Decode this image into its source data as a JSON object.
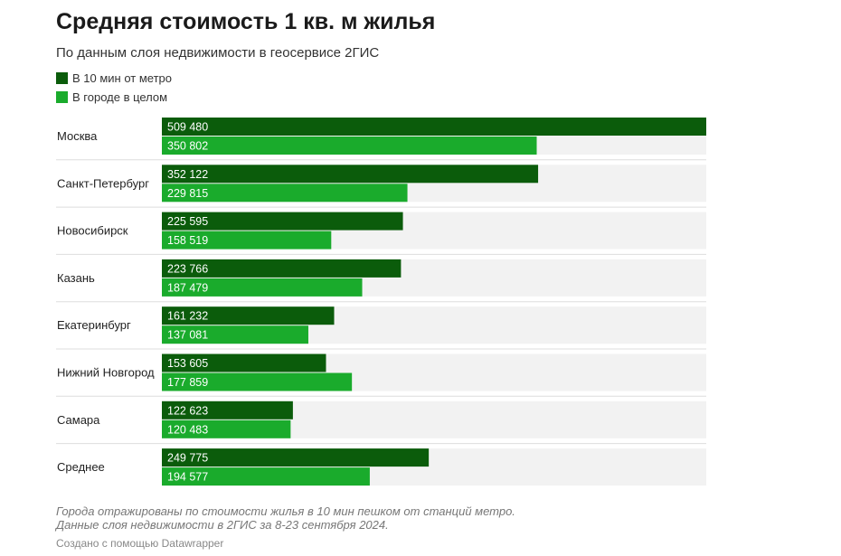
{
  "chart_data": {
    "type": "bar",
    "orientation": "horizontal",
    "title": "Средняя стоимость 1 кв. м жилья",
    "subtitle": "По данным слоя недвижимости в геосервисе 2ГИС",
    "categories": [
      "Москва",
      "Санкт-Петербург",
      "Новосибирск",
      "Казань",
      "Екатеринбург",
      "Нижний Новгород",
      "Самара",
      "Среднее"
    ],
    "series": [
      {
        "name": "В 10 мин от метро",
        "color": "#0b5c0b",
        "values": [
          509480,
          352122,
          225595,
          223766,
          161232,
          153605,
          122623,
          249775
        ],
        "labels": [
          "509 480",
          "352 122",
          "225 595",
          "223 766",
          "161 232",
          "153 605",
          "122 623",
          "249 775"
        ]
      },
      {
        "name": "В городе в целом",
        "color": "#1aab2c",
        "values": [
          350802,
          229815,
          158519,
          187479,
          137081,
          177859,
          120483,
          194577
        ],
        "labels": [
          "350 802",
          "229 815",
          "158 519",
          "187 479",
          "137 081",
          "177 859",
          "120 483",
          "194 577"
        ]
      }
    ],
    "xlim": [
      0,
      509480
    ],
    "background_track": "#f2f2f2",
    "grid": false,
    "legend_position": "top-left"
  },
  "notes": [
    "Города отражированы по стоимости жилья в 10 мин пешком от станций метро.",
    "Данные слоя недвижимости в 2ГИС за 8-23 сентября 2024."
  ],
  "credit": "Создано с помощью Datawrapper"
}
